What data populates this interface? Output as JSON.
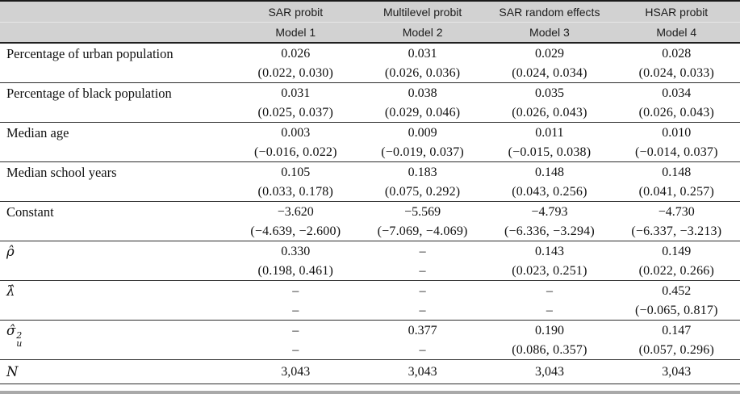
{
  "table": {
    "header": {
      "columns": [
        {
          "name": "SAR probit",
          "model": "Model 1"
        },
        {
          "name": "Multilevel probit",
          "model": "Model 2"
        },
        {
          "name": "SAR random effects",
          "model": "Model 3"
        },
        {
          "name": "HSAR probit",
          "model": "Model 4"
        }
      ]
    },
    "rows": [
      {
        "label": "Percentage of urban population",
        "est": [
          "0.026",
          "0.031",
          "0.029",
          "0.028"
        ],
        "ci": [
          "(0.022, 0.030)",
          "(0.026, 0.036)",
          "(0.024, 0.034)",
          "(0.024, 0.033)"
        ]
      },
      {
        "label": "Percentage of black population",
        "est": [
          "0.031",
          "0.038",
          "0.035",
          "0.034"
        ],
        "ci": [
          "(0.025, 0.037)",
          "(0.029, 0.046)",
          "(0.026, 0.043)",
          "(0.026, 0.043)"
        ]
      },
      {
        "label": "Median age",
        "est": [
          "0.003",
          "0.009",
          "0.011",
          "0.010"
        ],
        "ci": [
          "(−0.016, 0.022)",
          "(−0.019, 0.037)",
          "(−0.015, 0.038)",
          "(−0.014, 0.037)"
        ]
      },
      {
        "label": "Median school years",
        "est": [
          "0.105",
          "0.183",
          "0.148",
          "0.148"
        ],
        "ci": [
          "(0.033, 0.178)",
          "(0.075, 0.292)",
          "(0.043, 0.256)",
          "(0.041, 0.257)"
        ]
      },
      {
        "label": "Constant",
        "est": [
          "−3.620",
          "−5.569",
          "−4.793",
          "−4.730"
        ],
        "ci": [
          "(−4.639, −2.600)",
          "(−7.069, −4.069)",
          "(−6.336, −3.294)",
          "(−6.337, −3.213)"
        ]
      },
      {
        "label": "ρ̂",
        "est": [
          "0.330",
          "–",
          "0.143",
          "0.149"
        ],
        "ci": [
          "(0.198, 0.461)",
          "–",
          "(0.023, 0.251)",
          "(0.022, 0.266)"
        ]
      },
      {
        "label": "λ̂",
        "est": [
          "–",
          "–",
          "–",
          "0.452"
        ],
        "ci": [
          "–",
          "–",
          "–",
          "(−0.065, 0.817)"
        ]
      },
      {
        "label": "σ̂",
        "label_sup": "2",
        "label_sub": "u",
        "est": [
          "–",
          "0.377",
          "0.190",
          "0.147"
        ],
        "ci": [
          "–",
          "–",
          "(0.086, 0.357)",
          "(0.057, 0.296)"
        ]
      }
    ],
    "footer": {
      "label": "N",
      "values": [
        "3,043",
        "3,043",
        "3,043",
        "3,043"
      ]
    }
  },
  "colors": {
    "header_bg": "#d2d2d2",
    "rule_dark": "#2c2c2c",
    "bottom_strip": "#a9a9a9",
    "text": "#111111"
  }
}
